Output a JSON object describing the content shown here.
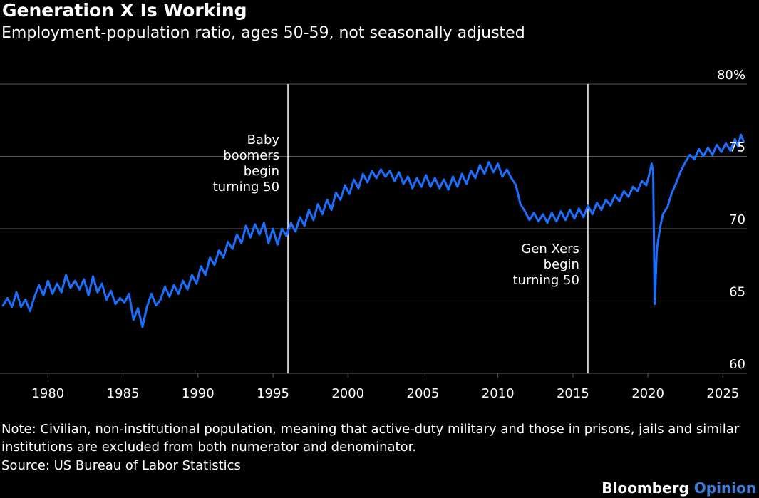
{
  "title": "Generation X Is Working",
  "subtitle": "Employment-population ratio, ages 50-59, not seasonally adjusted",
  "note": "Note: Civilian, non-institutional population, meaning that active-duty military and those in prisons, jails and similar institutions are excluded from both numerator and denominator.",
  "source": "Source: US Bureau of Labor Statistics",
  "brand": {
    "primary": "Bloomberg",
    "secondary": "Opinion"
  },
  "colors": {
    "background": "#000000",
    "line": "#1a6fff",
    "grid": "#5a5a5a",
    "text": "#ffffff",
    "brand_accent": "#3b7dd8"
  },
  "chart_data": {
    "type": "line",
    "title": "Generation X Is Working",
    "subtitle": "Employment-population ratio, ages 50-59, not seasonally adjusted",
    "xlabel": "",
    "ylabel": "",
    "xlim": [
      1976.8,
      2026.6
    ],
    "ylim": [
      60,
      80
    ],
    "y_ticks": [
      60,
      65,
      70,
      75,
      80
    ],
    "y_tick_labels": [
      "60",
      "65",
      "70",
      "75",
      "80%"
    ],
    "x_ticks": [
      1980,
      1985,
      1990,
      1995,
      2000,
      2005,
      2010,
      2015,
      2020,
      2025
    ],
    "x_tick_labels": [
      "1980",
      "1985",
      "1990",
      "1995",
      "2000",
      "2005",
      "2010",
      "2015",
      "2020",
      "2025"
    ],
    "grid": "horizontal",
    "y_axis_side": "right",
    "annotations": [
      {
        "x": 1996,
        "lines": [
          "Baby",
          "boomers",
          "begin",
          "turning 50"
        ],
        "side": "left",
        "position": "upper"
      },
      {
        "x": 2016,
        "lines": [
          "Gen Xers",
          "begin",
          "turning 50"
        ],
        "side": "left",
        "position": "lower"
      }
    ],
    "series": [
      {
        "values": [
          [
            1977.0,
            64.7
          ],
          [
            1977.3,
            65.2
          ],
          [
            1977.6,
            64.6
          ],
          [
            1977.9,
            65.6
          ],
          [
            1978.2,
            64.6
          ],
          [
            1978.5,
            65.1
          ],
          [
            1978.8,
            64.3
          ],
          [
            1979.1,
            65.3
          ],
          [
            1979.4,
            66.1
          ],
          [
            1979.7,
            65.4
          ],
          [
            1980.0,
            66.4
          ],
          [
            1980.3,
            65.5
          ],
          [
            1980.6,
            66.2
          ],
          [
            1980.9,
            65.6
          ],
          [
            1981.2,
            66.8
          ],
          [
            1981.5,
            65.9
          ],
          [
            1981.8,
            66.4
          ],
          [
            1982.1,
            65.8
          ],
          [
            1982.4,
            66.5
          ],
          [
            1982.7,
            65.4
          ],
          [
            1983.0,
            66.7
          ],
          [
            1983.3,
            65.6
          ],
          [
            1983.6,
            66.2
          ],
          [
            1983.9,
            65.1
          ],
          [
            1984.2,
            65.7
          ],
          [
            1984.5,
            64.8
          ],
          [
            1984.8,
            65.2
          ],
          [
            1985.1,
            64.9
          ],
          [
            1985.4,
            65.5
          ],
          [
            1985.7,
            63.7
          ],
          [
            1986.0,
            64.5
          ],
          [
            1986.3,
            63.2
          ],
          [
            1986.6,
            64.6
          ],
          [
            1986.9,
            65.5
          ],
          [
            1987.2,
            64.7
          ],
          [
            1987.5,
            65.1
          ],
          [
            1987.8,
            66.0
          ],
          [
            1988.1,
            65.3
          ],
          [
            1988.4,
            66.1
          ],
          [
            1988.7,
            65.5
          ],
          [
            1989.0,
            66.4
          ],
          [
            1989.3,
            65.8
          ],
          [
            1989.6,
            66.8
          ],
          [
            1989.9,
            66.2
          ],
          [
            1990.2,
            67.4
          ],
          [
            1990.5,
            66.8
          ],
          [
            1990.8,
            68.0
          ],
          [
            1991.1,
            67.5
          ],
          [
            1991.4,
            68.5
          ],
          [
            1991.7,
            68.0
          ],
          [
            1992.0,
            69.1
          ],
          [
            1992.3,
            68.6
          ],
          [
            1992.6,
            69.6
          ],
          [
            1992.9,
            69.0
          ],
          [
            1993.2,
            70.2
          ],
          [
            1993.5,
            69.4
          ],
          [
            1993.8,
            70.3
          ],
          [
            1994.1,
            69.6
          ],
          [
            1994.4,
            70.4
          ],
          [
            1994.7,
            69.0
          ],
          [
            1995.0,
            70.0
          ],
          [
            1995.3,
            68.9
          ],
          [
            1995.6,
            70.0
          ],
          [
            1995.9,
            69.5
          ],
          [
            1996.2,
            70.4
          ],
          [
            1996.5,
            69.8
          ],
          [
            1996.8,
            70.8
          ],
          [
            1997.1,
            70.2
          ],
          [
            1997.4,
            71.3
          ],
          [
            1997.7,
            70.6
          ],
          [
            1998.0,
            71.7
          ],
          [
            1998.3,
            71.0
          ],
          [
            1998.6,
            72.0
          ],
          [
            1998.9,
            71.3
          ],
          [
            1999.2,
            72.5
          ],
          [
            1999.5,
            72.0
          ],
          [
            1999.8,
            73.0
          ],
          [
            2000.1,
            72.4
          ],
          [
            2000.4,
            73.4
          ],
          [
            2000.7,
            72.8
          ],
          [
            2001.0,
            73.8
          ],
          [
            2001.3,
            73.2
          ],
          [
            2001.6,
            74.0
          ],
          [
            2001.9,
            73.5
          ],
          [
            2002.2,
            74.1
          ],
          [
            2002.5,
            73.6
          ],
          [
            2002.8,
            74.0
          ],
          [
            2003.1,
            73.3
          ],
          [
            2003.4,
            73.9
          ],
          [
            2003.7,
            73.1
          ],
          [
            2004.0,
            73.6
          ],
          [
            2004.3,
            72.8
          ],
          [
            2004.6,
            73.5
          ],
          [
            2004.9,
            72.9
          ],
          [
            2005.2,
            73.7
          ],
          [
            2005.5,
            72.9
          ],
          [
            2005.8,
            73.5
          ],
          [
            2006.1,
            72.8
          ],
          [
            2006.4,
            73.4
          ],
          [
            2006.7,
            72.7
          ],
          [
            2007.0,
            73.6
          ],
          [
            2007.3,
            72.9
          ],
          [
            2007.6,
            73.8
          ],
          [
            2007.9,
            73.1
          ],
          [
            2008.2,
            74.0
          ],
          [
            2008.5,
            73.5
          ],
          [
            2008.8,
            74.4
          ],
          [
            2009.1,
            73.8
          ],
          [
            2009.4,
            74.6
          ],
          [
            2009.7,
            73.9
          ],
          [
            2010.0,
            74.5
          ],
          [
            2010.3,
            73.6
          ],
          [
            2010.6,
            74.1
          ],
          [
            2010.9,
            73.5
          ],
          [
            2011.2,
            73.0
          ],
          [
            2011.5,
            71.7
          ],
          [
            2011.8,
            71.2
          ],
          [
            2012.1,
            70.6
          ],
          [
            2012.4,
            71.1
          ],
          [
            2012.7,
            70.5
          ],
          [
            2013.0,
            71.0
          ],
          [
            2013.3,
            70.4
          ],
          [
            2013.6,
            71.1
          ],
          [
            2013.9,
            70.5
          ],
          [
            2014.2,
            71.2
          ],
          [
            2014.5,
            70.6
          ],
          [
            2014.8,
            71.3
          ],
          [
            2015.1,
            70.7
          ],
          [
            2015.4,
            71.4
          ],
          [
            2015.7,
            70.8
          ],
          [
            2016.0,
            71.6
          ],
          [
            2016.3,
            71.0
          ],
          [
            2016.6,
            71.8
          ],
          [
            2016.9,
            71.3
          ],
          [
            2017.2,
            72.0
          ],
          [
            2017.5,
            71.6
          ],
          [
            2017.8,
            72.3
          ],
          [
            2018.1,
            71.9
          ],
          [
            2018.4,
            72.6
          ],
          [
            2018.7,
            72.2
          ],
          [
            2019.0,
            72.9
          ],
          [
            2019.3,
            72.6
          ],
          [
            2019.6,
            73.3
          ],
          [
            2019.9,
            73.0
          ],
          [
            2020.1,
            73.8
          ],
          [
            2020.25,
            74.5
          ],
          [
            2020.35,
            73.9
          ],
          [
            2020.45,
            64.8
          ],
          [
            2020.6,
            68.6
          ],
          [
            2020.8,
            70.0
          ],
          [
            2021.0,
            71.0
          ],
          [
            2021.3,
            71.5
          ],
          [
            2021.6,
            72.5
          ],
          [
            2021.9,
            73.2
          ],
          [
            2022.2,
            74.0
          ],
          [
            2022.5,
            74.6
          ],
          [
            2022.8,
            75.1
          ],
          [
            2023.1,
            74.8
          ],
          [
            2023.4,
            75.5
          ],
          [
            2023.7,
            75.0
          ],
          [
            2024.0,
            75.6
          ],
          [
            2024.3,
            75.1
          ],
          [
            2024.6,
            75.8
          ],
          [
            2024.9,
            75.3
          ],
          [
            2025.2,
            75.9
          ],
          [
            2025.5,
            75.4
          ],
          [
            2025.8,
            76.2
          ],
          [
            2026.0,
            75.7
          ],
          [
            2026.2,
            76.5
          ],
          [
            2026.4,
            76.0
          ]
        ]
      }
    ]
  }
}
